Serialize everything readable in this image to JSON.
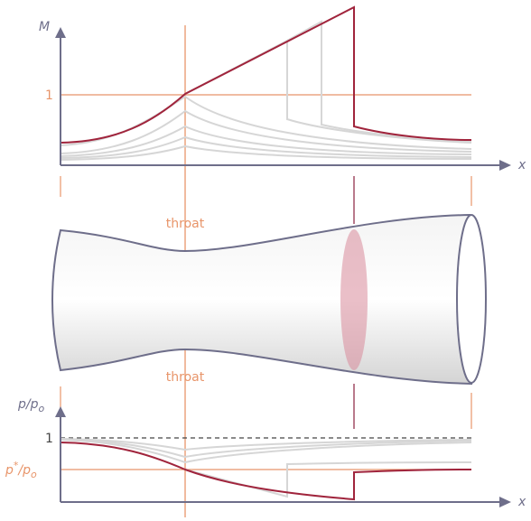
{
  "top_plot": {
    "y_label": "M",
    "x_label": "x",
    "one_label": "1"
  },
  "nozzle": {
    "throat_top": "throat",
    "throat_bottom": "throat"
  },
  "bottom_plot": {
    "y_label": "p/p",
    "y_label_sub": "o",
    "one_label": "1",
    "star_label": "p",
    "star_sup": "*",
    "star_rest": "/p",
    "star_sub": "o",
    "x_label": "x"
  }
}
